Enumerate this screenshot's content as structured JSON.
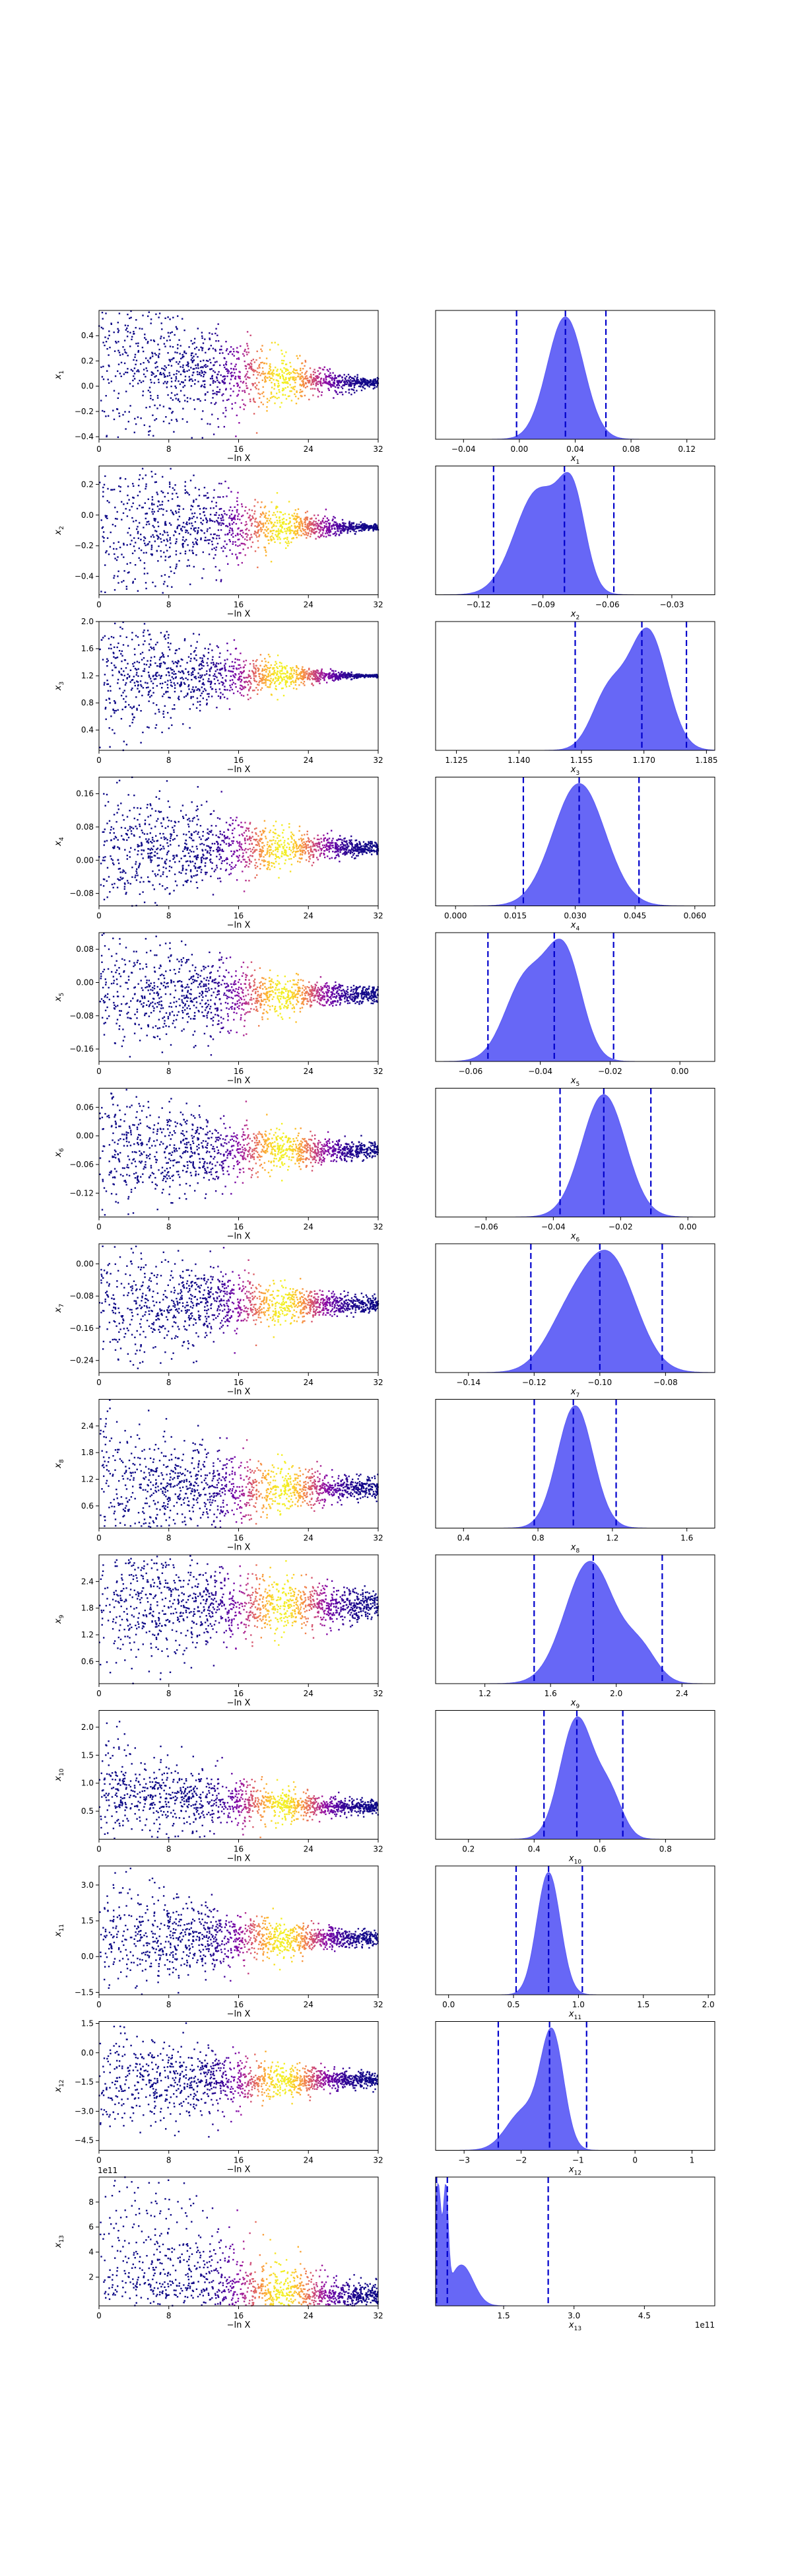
{
  "chart_data": [
    {
      "type": "scatter",
      "param": 1,
      "ylabel_main": "x",
      "ylabel_sub": "1",
      "xlabel": "−ln X",
      "xlim": [
        0,
        32
      ],
      "xticks": [
        0,
        8,
        16,
        24,
        32
      ],
      "ylim": [
        -0.42,
        0.6
      ],
      "yticks": [
        -0.4,
        -0.2,
        0.0,
        0.2,
        0.4
      ],
      "center": 0.02,
      "spread_start": 0.4,
      "spread_end": 0.02,
      "skew": 0.1,
      "colormap": "plasma",
      "scatter_note": "live points colored by weight; sample cloud narrows from wide scatter at low −ln X toward the posterior value"
    },
    {
      "type": "scatter",
      "param": 2,
      "ylabel_main": "x",
      "ylabel_sub": "2",
      "xlabel": "−ln X",
      "xlim": [
        0,
        32
      ],
      "xticks": [
        0,
        8,
        16,
        24,
        32
      ],
      "ylim": [
        -0.52,
        0.32
      ],
      "yticks": [
        -0.4,
        -0.2,
        0.0,
        0.2
      ],
      "center": -0.08,
      "spread_start": 0.3,
      "spread_end": 0.01,
      "skew": 0.0,
      "colormap": "plasma"
    },
    {
      "type": "scatter",
      "param": 3,
      "ylabel_main": "x",
      "ylabel_sub": "3",
      "xlabel": "−ln X",
      "xlim": [
        0,
        32
      ],
      "xticks": [
        0,
        8,
        16,
        24,
        32
      ],
      "ylim": [
        0.1,
        2.0
      ],
      "yticks": [
        0.4,
        0.8,
        1.2,
        1.6,
        2.0
      ],
      "center": 1.2,
      "spread_start": 0.5,
      "spread_end": 0.008,
      "skew": 0.0,
      "colormap": "plasma"
    },
    {
      "type": "scatter",
      "param": 4,
      "ylabel_main": "x",
      "ylabel_sub": "4",
      "xlabel": "−ln X",
      "xlim": [
        0,
        32
      ],
      "xticks": [
        0,
        8,
        16,
        24,
        32
      ],
      "ylim": [
        -0.11,
        0.2
      ],
      "yticks": [
        -0.08,
        0.0,
        0.08,
        0.16
      ],
      "center": 0.03,
      "spread_start": 0.08,
      "spread_end": 0.008,
      "skew": 0.0,
      "colormap": "plasma"
    },
    {
      "type": "scatter",
      "param": 5,
      "ylabel_main": "x",
      "ylabel_sub": "5",
      "xlabel": "−ln X",
      "xlim": [
        0,
        32
      ],
      "xticks": [
        0,
        8,
        16,
        24,
        32
      ],
      "ylim": [
        -0.19,
        0.12
      ],
      "yticks": [
        -0.16,
        -0.08,
        0.0,
        0.08
      ],
      "center": -0.03,
      "spread_start": 0.08,
      "spread_end": 0.01,
      "skew": 0.0,
      "colormap": "plasma"
    },
    {
      "type": "scatter",
      "param": 6,
      "ylabel_main": "x",
      "ylabel_sub": "6",
      "xlabel": "−ln X",
      "xlim": [
        0,
        32
      ],
      "xticks": [
        0,
        8,
        16,
        24,
        32
      ],
      "ylim": [
        -0.17,
        0.1
      ],
      "yticks": [
        -0.12,
        -0.06,
        0.0,
        0.06
      ],
      "center": -0.03,
      "spread_start": 0.07,
      "spread_end": 0.008,
      "skew": 0.0,
      "colormap": "plasma"
    },
    {
      "type": "scatter",
      "param": 7,
      "ylabel_main": "x",
      "ylabel_sub": "7",
      "xlabel": "−ln X",
      "xlim": [
        0,
        32
      ],
      "xticks": [
        0,
        8,
        16,
        24,
        32
      ],
      "ylim": [
        -0.27,
        0.05
      ],
      "yticks": [
        -0.24,
        -0.16,
        -0.08,
        0.0
      ],
      "center": -0.1,
      "spread_start": 0.08,
      "spread_end": 0.01,
      "skew": 0.0,
      "colormap": "plasma"
    },
    {
      "type": "scatter",
      "param": 8,
      "ylabel_main": "x",
      "ylabel_sub": "8",
      "xlabel": "−ln X",
      "xlim": [
        0,
        32
      ],
      "xticks": [
        0,
        8,
        16,
        24,
        32
      ],
      "ylim": [
        0.1,
        3.0
      ],
      "yticks": [
        0.6,
        1.2,
        1.8,
        2.4
      ],
      "center": 1.0,
      "spread_start": 0.8,
      "spread_end": 0.12,
      "skew": 0.0,
      "colormap": "plasma"
    },
    {
      "type": "scatter",
      "param": 9,
      "ylabel_main": "x",
      "ylabel_sub": "9",
      "xlabel": "−ln X",
      "xlim": [
        0,
        32
      ],
      "xticks": [
        0,
        8,
        16,
        24,
        32
      ],
      "ylim": [
        0.1,
        3.0
      ],
      "yticks": [
        0.6,
        1.2,
        1.8,
        2.4
      ],
      "center": 1.85,
      "spread_start": 0.7,
      "spread_end": 0.18,
      "skew": 0.0,
      "colormap": "plasma"
    },
    {
      "type": "scatter",
      "param": 10,
      "ylabel_main": "x",
      "ylabel_sub": "10",
      "xlabel": "−ln X",
      "xlim": [
        0,
        32
      ],
      "xticks": [
        0,
        8,
        16,
        24,
        32
      ],
      "ylim": [
        0.0,
        2.3
      ],
      "yticks": [
        0.5,
        1.0,
        1.5,
        2.0
      ],
      "center": 0.55,
      "spread_start": 0.45,
      "spread_end": 0.06,
      "skew": 0.3,
      "colormap": "plasma"
    },
    {
      "type": "scatter",
      "param": 11,
      "ylabel_main": "x",
      "ylabel_sub": "11",
      "xlabel": "−ln X",
      "xlim": [
        0,
        32
      ],
      "xticks": [
        0,
        8,
        16,
        24,
        32
      ],
      "ylim": [
        -1.6,
        3.8
      ],
      "yticks": [
        -1.5,
        0.0,
        1.5,
        3.0
      ],
      "center": 0.75,
      "spread_start": 1.2,
      "spread_end": 0.15,
      "skew": 0.0,
      "colormap": "plasma"
    },
    {
      "type": "scatter",
      "param": 12,
      "ylabel_main": "x",
      "ylabel_sub": "12",
      "xlabel": "−ln X",
      "xlim": [
        0,
        32
      ],
      "xticks": [
        0,
        8,
        16,
        24,
        32
      ],
      "ylim": [
        -5.0,
        1.6
      ],
      "yticks": [
        -4.5,
        -3.0,
        -1.5,
        0.0,
        1.5
      ],
      "center": -1.4,
      "spread_start": 1.3,
      "spread_end": 0.2,
      "skew": 0.0,
      "colormap": "plasma"
    },
    {
      "type": "scatter",
      "param": 13,
      "ylabel_main": "x",
      "ylabel_sub": "13",
      "xlabel": "−ln X",
      "xlim": [
        0,
        32
      ],
      "xticks": [
        0,
        8,
        16,
        24,
        32
      ],
      "ylim": [
        -0.3,
        10.0
      ],
      "yticks": [
        2,
        4,
        6,
        8
      ],
      "y_scale_label": "1e11",
      "center": 0.3,
      "spread_start": 3.0,
      "spread_end": 0.3,
      "skew": 1.0,
      "colormap": "plasma"
    },
    {
      "type": "area",
      "param": 1,
      "xlabel_main": "x",
      "xlabel_sub": "1",
      "xlim": [
        -0.06,
        0.14
      ],
      "xticks": [
        -0.04,
        0.0,
        0.04,
        0.08,
        0.12
      ],
      "xtick_decimals": 2,
      "quantiles": [
        -0.002,
        0.033,
        0.062
      ],
      "peaks": [
        {
          "mu": 0.033,
          "sigma": 0.013,
          "amp": 1.0
        }
      ],
      "fill": "#5a5af5"
    },
    {
      "type": "area",
      "param": 2,
      "xlabel_main": "x",
      "xlabel_sub": "2",
      "xlim": [
        -0.14,
        -0.01
      ],
      "xticks": [
        -0.12,
        -0.09,
        -0.06,
        -0.03
      ],
      "xtick_decimals": 2,
      "quantiles": [
        -0.113,
        -0.08,
        -0.057
      ],
      "peaks": [
        {
          "mu": -0.092,
          "sigma": 0.011,
          "amp": 0.72
        },
        {
          "mu": -0.076,
          "sigma": 0.006,
          "amp": 0.55
        }
      ],
      "fill": "#5a5af5"
    },
    {
      "type": "area",
      "param": 3,
      "xlabel_main": "x",
      "xlabel_sub": "3",
      "xlim": [
        1.12,
        1.187
      ],
      "xticks": [
        1.125,
        1.14,
        1.155,
        1.17,
        1.185
      ],
      "xtick_decimals": 3,
      "quantiles": [
        1.1535,
        1.1695,
        1.1802
      ],
      "peaks": [
        {
          "mu": 1.171,
          "sigma": 0.0045,
          "amp": 0.95
        },
        {
          "mu": 1.1615,
          "sigma": 0.004,
          "amp": 0.45
        }
      ],
      "fill": "#5a5af5"
    },
    {
      "type": "area",
      "param": 4,
      "xlabel_main": "x",
      "xlabel_sub": "4",
      "xlim": [
        -0.005,
        0.065
      ],
      "xticks": [
        0.0,
        0.015,
        0.03,
        0.045,
        0.06
      ],
      "xtick_decimals": 3,
      "quantiles": [
        0.017,
        0.031,
        0.046
      ],
      "peaks": [
        {
          "mu": 0.031,
          "sigma": 0.0065,
          "amp": 1.0
        }
      ],
      "fill": "#5a5af5"
    },
    {
      "type": "area",
      "param": 5,
      "xlabel_main": "x",
      "xlabel_sub": "5",
      "xlim": [
        -0.07,
        0.01
      ],
      "xticks": [
        -0.06,
        -0.04,
        -0.02,
        0.0
      ],
      "xtick_decimals": 2,
      "quantiles": [
        -0.055,
        -0.036,
        -0.019
      ],
      "peaks": [
        {
          "mu": -0.044,
          "sigma": 0.006,
          "amp": 0.6
        },
        {
          "mu": -0.033,
          "sigma": 0.005,
          "amp": 0.75
        }
      ],
      "fill": "#5a5af5"
    },
    {
      "type": "area",
      "param": 6,
      "xlabel_main": "x",
      "xlabel_sub": "6",
      "xlim": [
        -0.075,
        0.008
      ],
      "xticks": [
        -0.06,
        -0.04,
        -0.02,
        0.0
      ],
      "xtick_decimals": 2,
      "quantiles": [
        -0.038,
        -0.025,
        -0.011
      ],
      "peaks": [
        {
          "mu": -0.025,
          "sigma": 0.0065,
          "amp": 1.0
        }
      ],
      "fill": "#5a5af5"
    },
    {
      "type": "area",
      "param": 7,
      "xlabel_main": "x",
      "xlabel_sub": "7",
      "xlim": [
        -0.15,
        -0.065
      ],
      "xticks": [
        -0.14,
        -0.12,
        -0.1,
        -0.08
      ],
      "xtick_decimals": 2,
      "quantiles": [
        -0.121,
        -0.1,
        -0.081
      ],
      "peaks": [
        {
          "mu": -0.097,
          "sigma": 0.008,
          "amp": 1.0
        },
        {
          "mu": -0.11,
          "sigma": 0.007,
          "amp": 0.4
        }
      ],
      "fill": "#5a5af5"
    },
    {
      "type": "area",
      "param": 8,
      "xlabel_main": "x",
      "xlabel_sub": "8",
      "xlim": [
        0.25,
        1.75
      ],
      "xticks": [
        0.4,
        0.8,
        1.2,
        1.6
      ],
      "xtick_decimals": 1,
      "quantiles": [
        0.78,
        0.99,
        1.22
      ],
      "peaks": [
        {
          "mu": 1.0,
          "sigma": 0.095,
          "amp": 1.0
        }
      ],
      "fill": "#5a5af5"
    },
    {
      "type": "area",
      "param": 9,
      "xlabel_main": "x",
      "xlabel_sub": "9",
      "xlim": [
        0.9,
        2.6
      ],
      "xticks": [
        1.2,
        1.6,
        2.0,
        2.4
      ],
      "xtick_decimals": 1,
      "quantiles": [
        1.5,
        1.86,
        2.28
      ],
      "peaks": [
        {
          "mu": 1.84,
          "sigma": 0.15,
          "amp": 1.0
        },
        {
          "mu": 2.15,
          "sigma": 0.1,
          "amp": 0.25
        }
      ],
      "fill": "#5a5af5"
    },
    {
      "type": "area",
      "param": 10,
      "xlabel_main": "x",
      "xlabel_sub": "10",
      "xlim": [
        0.1,
        0.95
      ],
      "xticks": [
        0.2,
        0.4,
        0.6,
        0.8
      ],
      "xtick_decimals": 1,
      "quantiles": [
        0.43,
        0.53,
        0.67
      ],
      "peaks": [
        {
          "mu": 0.53,
          "sigma": 0.05,
          "amp": 1.0
        },
        {
          "mu": 0.63,
          "sigma": 0.04,
          "amp": 0.35
        }
      ],
      "fill": "#5a5af5"
    },
    {
      "type": "area",
      "param": 11,
      "xlabel_main": "x",
      "xlabel_sub": "11",
      "xlim": [
        -0.1,
        2.05
      ],
      "xticks": [
        0.0,
        0.5,
        1.0,
        1.5,
        2.0
      ],
      "xtick_decimals": 1,
      "quantiles": [
        0.52,
        0.77,
        1.03
      ],
      "peaks": [
        {
          "mu": 0.77,
          "sigma": 0.09,
          "amp": 1.0
        }
      ],
      "fill": "#5a5af5"
    },
    {
      "type": "area",
      "param": 12,
      "xlabel_main": "x",
      "xlabel_sub": "12",
      "xlim": [
        -3.5,
        1.4
      ],
      "xticks": [
        -3,
        -2,
        -1,
        0,
        1
      ],
      "xtick_decimals": 0,
      "xtick_minus": true,
      "quantiles": [
        -2.4,
        -1.5,
        -0.85
      ],
      "peaks": [
        {
          "mu": -1.45,
          "sigma": 0.2,
          "amp": 1.0
        },
        {
          "mu": -1.95,
          "sigma": 0.3,
          "amp": 0.35
        }
      ],
      "fill": "#5a5af5"
    },
    {
      "type": "area",
      "param": 13,
      "xlabel_main": "x",
      "xlabel_sub": "13",
      "xlim": [
        0.05,
        6.0
      ],
      "xticks": [
        1.5,
        3.0,
        4.5
      ],
      "xtick_decimals": 1,
      "x_scale_label": "1e11",
      "quantiles": [
        0.07,
        0.3,
        2.45
      ],
      "peaks": [
        {
          "mu": 0.1,
          "sigma": 0.07,
          "amp": 1.0
        },
        {
          "mu": 0.27,
          "sigma": 0.05,
          "amp": 0.85
        },
        {
          "mu": 0.6,
          "sigma": 0.25,
          "amp": 0.35
        }
      ],
      "fill": "#5a5af5"
    }
  ],
  "style": {
    "quantile_line_color": "#0000cc",
    "fill_color": "#5a5af5",
    "scatter_low_color": "#0d0887",
    "scatter_high_color": "#f0f921"
  }
}
